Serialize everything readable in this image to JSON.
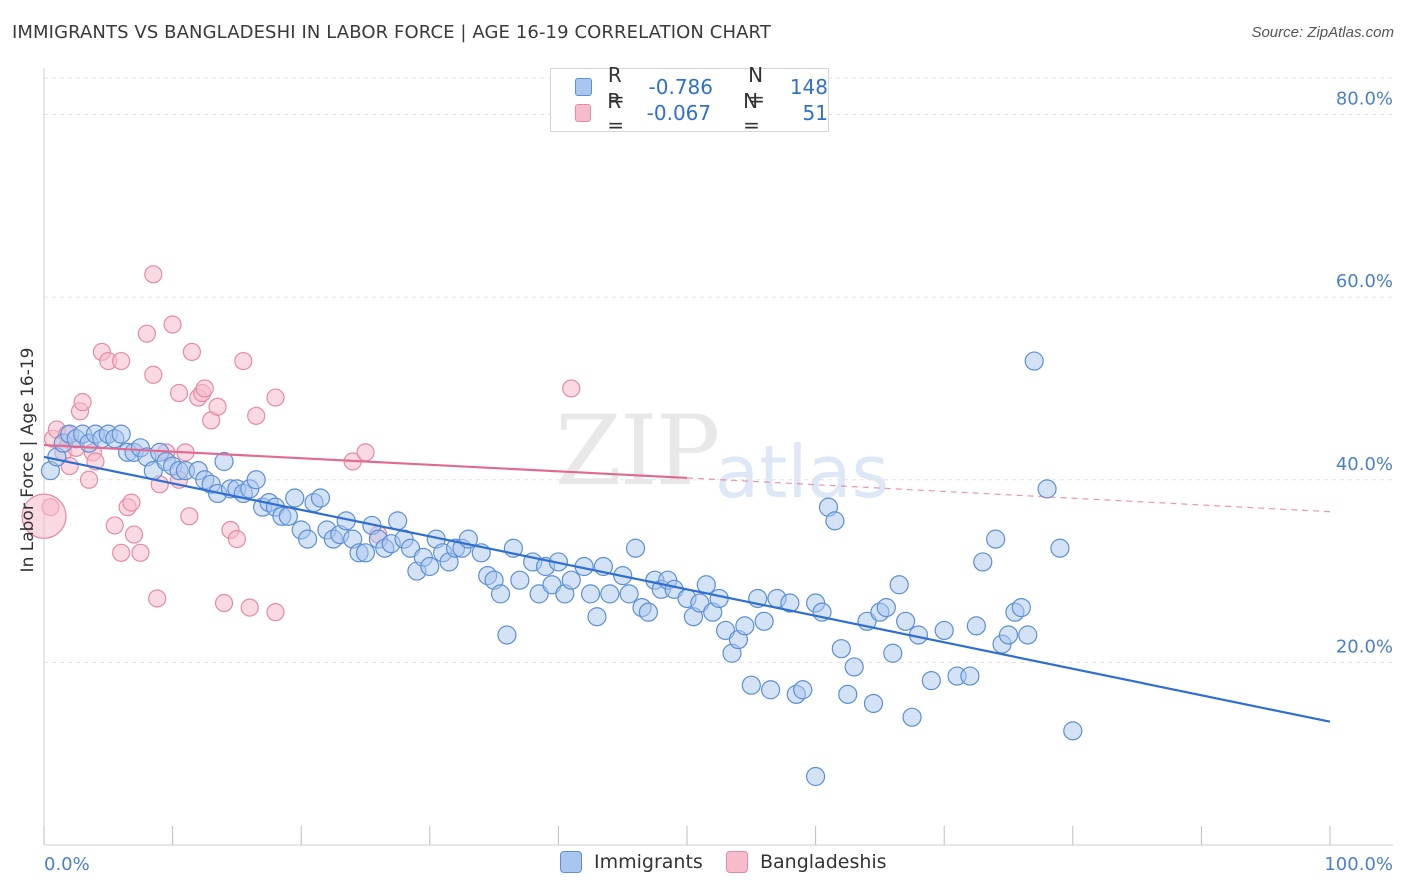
{
  "title": "IMMIGRANTS VS BANGLADESHI IN LABOR FORCE | AGE 16-19 CORRELATION CHART",
  "source": "Source: ZipAtlas.com",
  "watermark": {
    "zip": "ZIP",
    "atlas": "atlas"
  },
  "legend": {
    "rows": [
      {
        "r_label": "R =",
        "r_value": "-0.786",
        "n_label": "N =",
        "n_value": "148"
      },
      {
        "r_label": "R =",
        "r_value": "-0.067",
        "n_label": "N =",
        "n_value": "51"
      }
    ]
  },
  "bottom_legend": [
    "Immigrants",
    "Bangladeshis"
  ],
  "colors": {
    "immigrants_fill": "#a9c6ee",
    "immigrants_stroke": "#5b8fd8",
    "immigrants_line": "#2f6fd1",
    "bangladeshi_fill": "#f6bccb",
    "bangladeshi_stroke": "#e889a6",
    "bangladeshi_line": "#e06b92",
    "grid": "#e3e3e3",
    "axis_text": "#4a7fd0"
  },
  "chart_data": {
    "type": "scatter",
    "title": "IMMIGRANTS VS BANGLADESHI IN LABOR FORCE | AGE 16-19 CORRELATION CHART",
    "xlabel": "",
    "ylabel": "In Labor Force | Age 16-19",
    "xlim": [
      0,
      100
    ],
    "ylim": [
      0,
      84
    ],
    "x_tick_labels": [
      "0.0%",
      "100.0%"
    ],
    "y_ticks": [
      20,
      40,
      60,
      80
    ],
    "y_tick_labels": [
      "20.0%",
      "40.0%",
      "60.0%",
      "80.0%"
    ],
    "series": [
      {
        "name": "Immigrants",
        "r": -0.786,
        "n": 148,
        "trend": {
          "x": [
            0,
            100
          ],
          "y": [
            42.5,
            13.5
          ]
        },
        "points": [
          [
            0.5,
            41
          ],
          [
            1,
            42.5
          ],
          [
            1.5,
            44
          ],
          [
            2,
            45
          ],
          [
            2.5,
            44.5
          ],
          [
            3,
            45
          ],
          [
            3.5,
            44
          ],
          [
            4,
            45
          ],
          [
            4.5,
            44.5
          ],
          [
            5,
            45
          ],
          [
            5.5,
            44.5
          ],
          [
            6,
            45
          ],
          [
            6.5,
            43
          ],
          [
            7,
            43
          ],
          [
            7.5,
            43.5
          ],
          [
            8,
            42.5
          ],
          [
            8.5,
            41
          ],
          [
            9,
            43
          ],
          [
            9.5,
            42
          ],
          [
            10,
            41.5
          ],
          [
            10.5,
            41
          ],
          [
            11,
            41
          ],
          [
            12,
            41
          ],
          [
            12.5,
            40
          ],
          [
            13,
            39.5
          ],
          [
            13.5,
            38.5
          ],
          [
            14,
            42
          ],
          [
            14.5,
            39
          ],
          [
            15,
            39
          ],
          [
            15.5,
            38.5
          ],
          [
            16,
            39
          ],
          [
            16.5,
            40
          ],
          [
            17,
            37
          ],
          [
            17.5,
            37.5
          ],
          [
            18,
            37
          ],
          [
            18.5,
            36
          ],
          [
            19,
            36
          ],
          [
            19.5,
            38
          ],
          [
            20,
            34.5
          ],
          [
            20.5,
            33.5
          ],
          [
            21,
            37.5
          ],
          [
            21.5,
            38
          ],
          [
            22,
            34.5
          ],
          [
            22.5,
            33.5
          ],
          [
            23,
            34
          ],
          [
            23.5,
            35.5
          ],
          [
            24,
            33.5
          ],
          [
            24.5,
            32
          ],
          [
            25,
            32
          ],
          [
            25.5,
            35
          ],
          [
            26,
            33.5
          ],
          [
            26.5,
            32.5
          ],
          [
            27,
            33
          ],
          [
            27.5,
            35.5
          ],
          [
            28,
            33.5
          ],
          [
            28.5,
            32.5
          ],
          [
            29,
            30
          ],
          [
            29.5,
            31.5
          ],
          [
            30,
            30.5
          ],
          [
            30.5,
            33.5
          ],
          [
            31,
            32
          ],
          [
            31.5,
            31
          ],
          [
            32,
            32.5
          ],
          [
            32.5,
            32.5
          ],
          [
            33,
            33.5
          ],
          [
            34,
            32
          ],
          [
            34.5,
            29.5
          ],
          [
            35,
            29
          ],
          [
            35.5,
            27.5
          ],
          [
            36,
            23
          ],
          [
            36.5,
            32.5
          ],
          [
            37,
            29
          ],
          [
            38,
            31
          ],
          [
            38.5,
            27.5
          ],
          [
            39,
            30.5
          ],
          [
            39.5,
            28.5
          ],
          [
            40,
            31
          ],
          [
            40.5,
            27.5
          ],
          [
            41,
            29
          ],
          [
            42,
            30.5
          ],
          [
            42.5,
            27.5
          ],
          [
            43,
            25
          ],
          [
            43.5,
            30.5
          ],
          [
            44,
            27.5
          ],
          [
            45,
            29.5
          ],
          [
            45.5,
            27.5
          ],
          [
            46,
            32.5
          ],
          [
            46.5,
            26
          ],
          [
            47,
            25.5
          ],
          [
            47.5,
            29
          ],
          [
            48,
            28
          ],
          [
            48.5,
            29
          ],
          [
            49,
            28
          ],
          [
            50,
            27
          ],
          [
            50.5,
            25
          ],
          [
            51,
            26.5
          ],
          [
            51.5,
            28.5
          ],
          [
            52,
            25.5
          ],
          [
            52.5,
            27
          ],
          [
            53,
            23.5
          ],
          [
            53.5,
            21
          ],
          [
            54,
            22.5
          ],
          [
            54.5,
            24
          ],
          [
            55,
            17.5
          ],
          [
            55.5,
            27
          ],
          [
            56,
            24.5
          ],
          [
            56.5,
            17
          ],
          [
            57,
            27
          ],
          [
            58,
            26.5
          ],
          [
            58.5,
            16.5
          ],
          [
            59,
            17
          ],
          [
            60,
            26.5
          ],
          [
            60.5,
            25.5
          ],
          [
            61,
            37
          ],
          [
            61.5,
            35.5
          ],
          [
            62,
            21.5
          ],
          [
            62.5,
            16.5
          ],
          [
            63,
            19.5
          ],
          [
            64,
            24.5
          ],
          [
            64.5,
            15.5
          ],
          [
            65,
            25.5
          ],
          [
            65.5,
            26
          ],
          [
            66,
            21
          ],
          [
            66.5,
            28.5
          ],
          [
            67,
            24.5
          ],
          [
            67.5,
            14
          ],
          [
            68,
            23
          ],
          [
            69,
            18
          ],
          [
            70,
            23.5
          ],
          [
            71,
            18.5
          ],
          [
            72,
            18.5
          ],
          [
            72.5,
            24
          ],
          [
            73,
            31
          ],
          [
            74,
            33.5
          ],
          [
            74.5,
            22
          ],
          [
            75,
            23
          ],
          [
            75.5,
            25.5
          ],
          [
            76,
            26
          ],
          [
            76.5,
            23
          ],
          [
            77,
            53
          ],
          [
            78,
            39
          ],
          [
            79,
            32.5
          ],
          [
            80,
            12.5
          ],
          [
            60,
            7.5
          ]
        ]
      },
      {
        "name": "Bangladeshis",
        "r": -0.067,
        "n": 51,
        "trend": {
          "x": [
            0,
            50
          ],
          "y": [
            43.8,
            40.2
          ]
        },
        "trend_dashed": {
          "x": [
            50,
            100
          ],
          "y": [
            40.2,
            36.5
          ]
        },
        "points": [
          [
            0.5,
            37
          ],
          [
            0.7,
            44.5
          ],
          [
            1,
            45.5
          ],
          [
            1.5,
            43
          ],
          [
            1.8,
            45
          ],
          [
            2,
            41.5
          ],
          [
            2.5,
            43.5
          ],
          [
            2.8,
            47.5
          ],
          [
            3,
            48.5
          ],
          [
            3.5,
            40
          ],
          [
            3.8,
            43
          ],
          [
            4,
            42
          ],
          [
            4.5,
            54
          ],
          [
            5,
            53
          ],
          [
            5.5,
            35
          ],
          [
            6,
            32
          ],
          [
            6,
            53
          ],
          [
            6.5,
            37
          ],
          [
            6.8,
            37.5
          ],
          [
            7,
            34
          ],
          [
            7.5,
            32
          ],
          [
            8,
            56
          ],
          [
            8.5,
            51.5
          ],
          [
            8.5,
            62.5
          ],
          [
            8.8,
            27
          ],
          [
            9,
            39.5
          ],
          [
            9.5,
            43
          ],
          [
            10,
            57
          ],
          [
            10.5,
            49.5
          ],
          [
            10.5,
            40
          ],
          [
            11,
            43
          ],
          [
            11.3,
            36
          ],
          [
            11.5,
            54
          ],
          [
            12,
            49
          ],
          [
            12.3,
            49.5
          ],
          [
            12.5,
            50
          ],
          [
            13,
            46.5
          ],
          [
            13.5,
            48
          ],
          [
            14,
            26.5
          ],
          [
            14.5,
            34.5
          ],
          [
            15,
            33.5
          ],
          [
            15.5,
            53
          ],
          [
            16,
            26
          ],
          [
            16.5,
            47
          ],
          [
            18,
            25.5
          ],
          [
            18,
            49
          ],
          [
            24,
            42
          ],
          [
            25,
            43
          ],
          [
            26,
            34
          ],
          [
            41,
            50
          ],
          [
            0,
            36
          ]
        ]
      }
    ]
  }
}
